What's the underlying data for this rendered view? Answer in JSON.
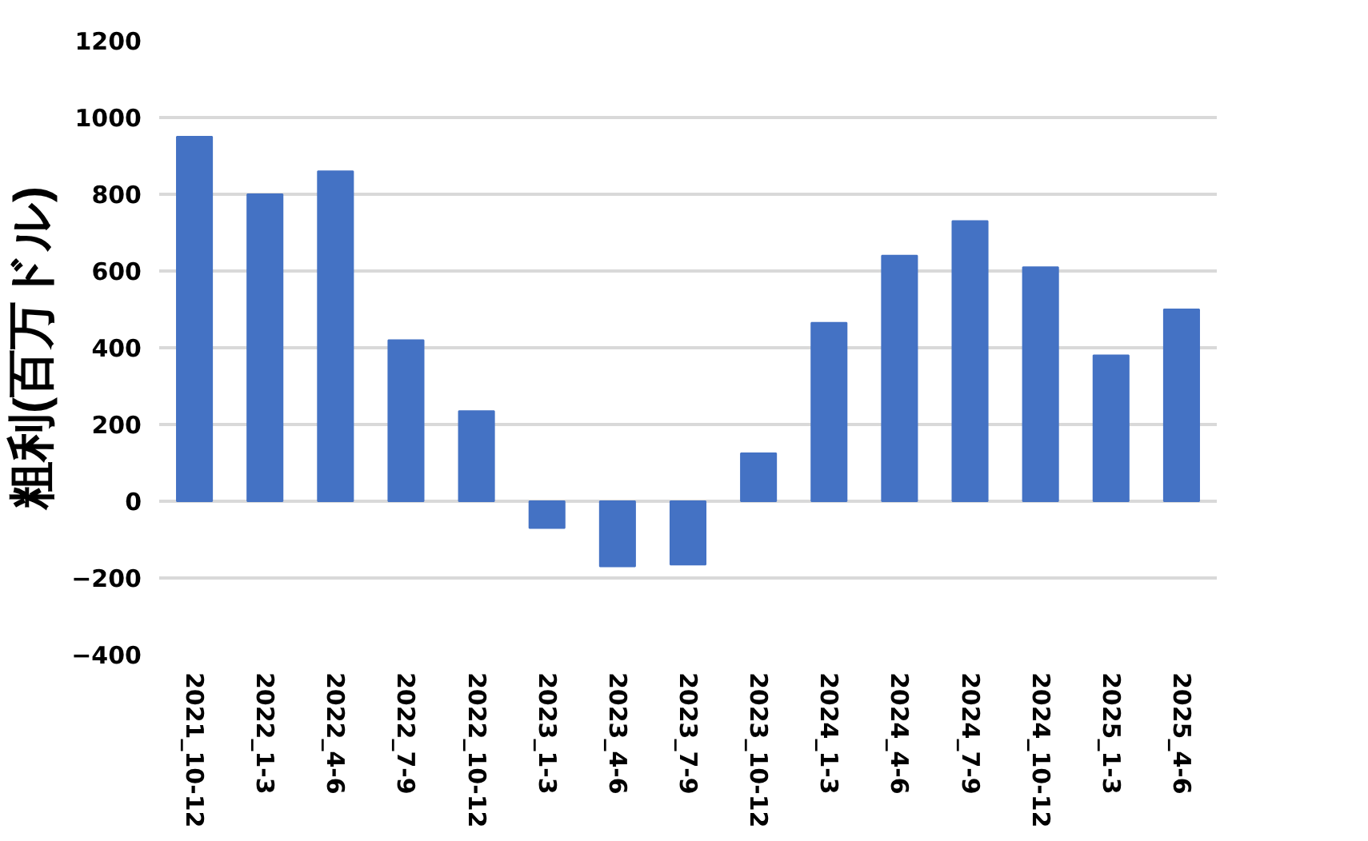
{
  "chart_data": {
    "type": "bar",
    "ylabel": "粗利(百万ドル)",
    "categories": [
      "2021_10-12",
      "2022_1-3",
      "2022_4-6",
      "2022_7-9",
      "2022_10-12",
      "2023_1-3",
      "2023_4-6",
      "2023_7-9",
      "2023_10-12",
      "2024_1-3",
      "2024_4-6",
      "2024_7-9",
      "2024_10-12",
      "2025_1-3",
      "2025_4-6"
    ],
    "values": [
      950,
      800,
      860,
      420,
      235,
      -70,
      -170,
      -165,
      125,
      465,
      640,
      730,
      610,
      380,
      500
    ],
    "color": "#4472c4",
    "ylim": [
      -400,
      1200
    ],
    "yticks": [
      -400,
      -200,
      0,
      200,
      400,
      600,
      800,
      1000,
      1200
    ],
    "grid": "y"
  }
}
